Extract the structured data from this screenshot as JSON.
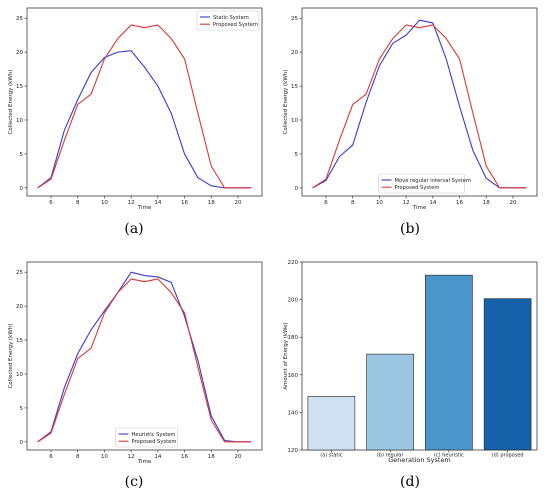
{
  "chart_data": [
    {
      "type": "line",
      "caption": "(a)",
      "xlabel": "Time",
      "ylabel": "Collected Energy (kWh)",
      "xlim": [
        4.2,
        21.8
      ],
      "ylim": [
        -1.2,
        26.5
      ],
      "xticks": [
        6,
        8,
        10,
        12,
        14,
        16,
        18,
        20
      ],
      "yticks": [
        0,
        5,
        10,
        15,
        20,
        25
      ],
      "grid": false,
      "legend_position": "top-right",
      "series": [
        {
          "name": "Static System",
          "color": "#3a3acf",
          "x": [
            5,
            6,
            7,
            8,
            9,
            10,
            11,
            12,
            13,
            14,
            15,
            16,
            17,
            18,
            19,
            20,
            21
          ],
          "y": [
            0,
            1.5,
            8.5,
            13,
            17,
            19.2,
            20,
            20.2,
            17.8,
            15,
            11,
            5,
            1.5,
            0.3,
            0,
            0,
            0
          ]
        },
        {
          "name": "Proposed System",
          "color": "#d93838",
          "x": [
            5,
            6,
            7,
            8,
            9,
            10,
            11,
            12,
            13,
            14,
            15,
            16,
            17,
            18,
            19,
            20,
            21
          ],
          "y": [
            0,
            1.3,
            7,
            12.3,
            13.8,
            19,
            22,
            24,
            23.6,
            24,
            22,
            19,
            11,
            3.2,
            0,
            0,
            0
          ]
        }
      ]
    },
    {
      "type": "line",
      "caption": "(b)",
      "xlabel": "Time",
      "ylabel": "Collected Energy (kWh)",
      "xlim": [
        4.2,
        21.8
      ],
      "ylim": [
        -1.2,
        26.5
      ],
      "xticks": [
        6,
        8,
        10,
        12,
        14,
        16,
        18,
        20
      ],
      "yticks": [
        0,
        5,
        10,
        15,
        20,
        25
      ],
      "grid": false,
      "legend_position": "bottom-center",
      "series": [
        {
          "name": "Move regular interval System",
          "color": "#3a3acf",
          "x": [
            5,
            6,
            7,
            8,
            9,
            10,
            11,
            12,
            13,
            14,
            15,
            16,
            17,
            18,
            19,
            20,
            21
          ],
          "y": [
            0,
            1.1,
            4.6,
            6.3,
            12.6,
            18,
            21.3,
            22.5,
            24.7,
            24.3,
            19,
            12,
            5.5,
            1.4,
            0,
            0,
            0
          ]
        },
        {
          "name": "Proposed System",
          "color": "#d93838",
          "x": [
            5,
            6,
            7,
            8,
            9,
            10,
            11,
            12,
            13,
            14,
            15,
            16,
            17,
            18,
            19,
            20,
            21
          ],
          "y": [
            0,
            1.3,
            7,
            12.3,
            13.8,
            19,
            22,
            24,
            23.6,
            24,
            22,
            19,
            11,
            3.2,
            0,
            0,
            0
          ]
        }
      ]
    },
    {
      "type": "line",
      "caption": "(c)",
      "xlabel": "Time",
      "ylabel": "Collected Energy (kWh)",
      "xlim": [
        4.2,
        21.8
      ],
      "ylim": [
        -1.2,
        26.5
      ],
      "xticks": [
        6,
        8,
        10,
        12,
        14,
        16,
        18,
        20
      ],
      "yticks": [
        0,
        5,
        10,
        15,
        20,
        25
      ],
      "grid": false,
      "legend_position": "bottom-center",
      "series": [
        {
          "name": "Heuristic System",
          "color": "#3a3acf",
          "x": [
            5,
            6,
            7,
            8,
            9,
            10,
            11,
            12,
            13,
            14,
            15,
            16,
            17,
            18,
            19,
            20,
            21
          ],
          "y": [
            0,
            1.5,
            8,
            13,
            16.5,
            19.3,
            22,
            25,
            24.5,
            24.3,
            23.5,
            18.5,
            12,
            3.8,
            0.2,
            0,
            0
          ]
        },
        {
          "name": "Proposed System",
          "color": "#d93838",
          "x": [
            5,
            6,
            7,
            8,
            9,
            10,
            11,
            12,
            13,
            14,
            15,
            16,
            17,
            18,
            19,
            20,
            21
          ],
          "y": [
            0,
            1.3,
            7,
            12.3,
            13.8,
            19,
            22,
            24,
            23.6,
            24,
            22,
            19,
            11,
            3.2,
            0,
            0,
            0
          ]
        }
      ]
    },
    {
      "type": "bar",
      "caption": "(d)",
      "xlabel": "Generation System",
      "ylabel": "Amount of Energy (kWe)",
      "ylim": [
        120,
        220
      ],
      "yticks": [
        120,
        140,
        160,
        180,
        200,
        220
      ],
      "grid": false,
      "categories": [
        "(a) static",
        "(b) regular",
        "(c) heuristic",
        "(d) proposed"
      ],
      "values": [
        148.5,
        171,
        213,
        200.5
      ],
      "colors": [
        "#cfe0f1",
        "#9ac6e1",
        "#4a96cb",
        "#1661a9"
      ]
    }
  ]
}
